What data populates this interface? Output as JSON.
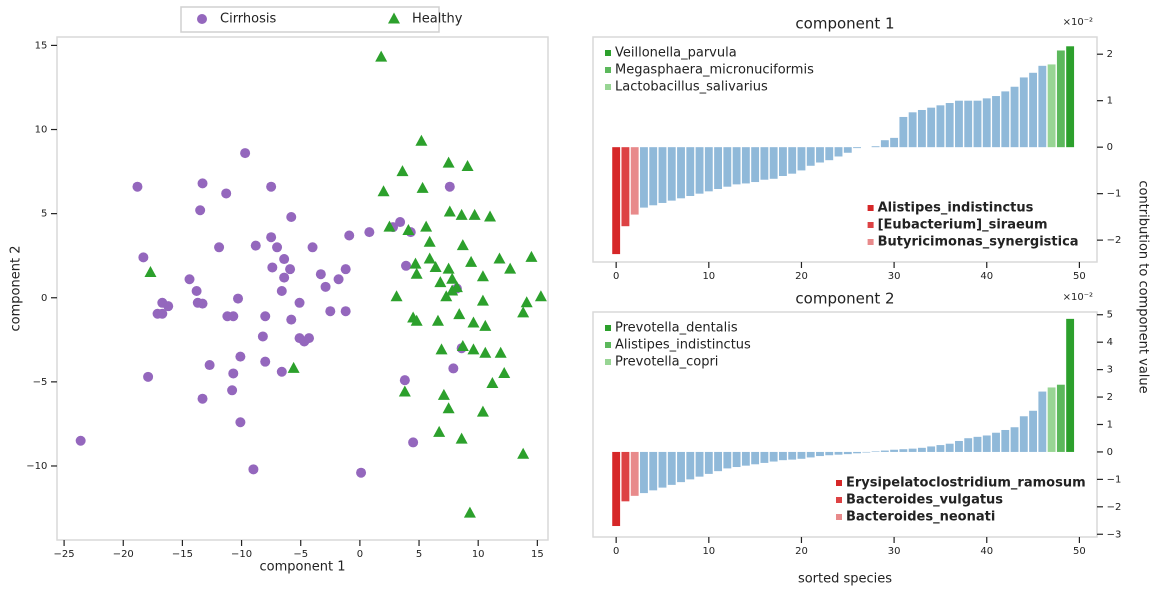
{
  "chart_data": [
    {
      "type": "scatter",
      "xlabel": "component 1",
      "ylabel": "component 2",
      "xlim": [
        -25.6,
        15.9
      ],
      "ylim": [
        -14.4,
        15.5
      ],
      "xticks": [
        {
          "value": -25,
          "label": "−25"
        },
        {
          "value": -20,
          "label": "−20"
        },
        {
          "value": -15,
          "label": "−15"
        },
        {
          "value": -10,
          "label": "−10"
        },
        {
          "value": -5,
          "label": "−5"
        },
        0,
        5,
        10,
        15
      ],
      "yticks": [
        {
          "value": -10,
          "label": "−10"
        },
        {
          "value": -5,
          "label": "−5"
        },
        0,
        5,
        10,
        15
      ],
      "legend": "top",
      "series": [
        {
          "name": "Cirrhosis",
          "color": "#9467bd",
          "marker": "circle",
          "x": [
            -23.6,
            -18.8,
            -18.3,
            -17.9,
            -16.7,
            -16.2,
            -17.1,
            -16.7,
            -14.4,
            -13.8,
            -13.7,
            -13.3,
            -13.5,
            -13.3,
            -13.3,
            -12.7,
            -11.9,
            -11.3,
            -11.2,
            -10.7,
            -10.7,
            -10.8,
            -10.3,
            -10.1,
            -10.1,
            -9.7,
            -9.0,
            -8.8,
            -8.2,
            -8.0,
            -8.0,
            -7.5,
            -7.5,
            -7.4,
            -7.0,
            -6.6,
            -6.4,
            -6.4,
            -6.6,
            -5.9,
            -5.8,
            -5.8,
            -5.1,
            -5.1,
            -4.7,
            -4.3,
            -4.0,
            -3.3,
            -2.9,
            -2.5,
            -1.8,
            -1.2,
            -1.2,
            -0.9,
            0.1,
            0.8,
            2.8,
            3.4,
            3.9,
            4.3,
            3.8,
            4.5,
            7.6,
            8.2,
            8.6,
            7.9
          ],
          "y": [
            -8.5,
            6.6,
            2.4,
            -4.7,
            -0.3,
            -0.5,
            -0.95,
            -0.95,
            1.1,
            0.4,
            -0.3,
            -0.35,
            5.2,
            6.8,
            -6.0,
            -4.0,
            3.0,
            6.2,
            -1.1,
            -1.1,
            -4.5,
            -5.5,
            -0.05,
            -3.5,
            -7.4,
            8.6,
            -10.2,
            3.1,
            -2.3,
            -1.1,
            -3.8,
            6.6,
            3.6,
            1.8,
            3.0,
            0.4,
            2.3,
            1.2,
            -4.4,
            1.7,
            4.8,
            -1.3,
            -0.3,
            -2.4,
            -2.6,
            -2.4,
            3.0,
            1.4,
            0.65,
            -0.8,
            1.1,
            1.7,
            -0.8,
            3.7,
            -10.4,
            3.9,
            4.2,
            4.5,
            1.9,
            3.9,
            -4.9,
            -8.6,
            6.6,
            0.55,
            -3.0,
            -4.2
          ]
        },
        {
          "name": "Healthy",
          "color": "#2ca02c",
          "marker": "triangle",
          "x": [
            1.8,
            -17.7,
            -5.6,
            2.0,
            2.5,
            3.6,
            5.2,
            5.3,
            7.5,
            9.1,
            4.1,
            5.6,
            5.9,
            7.6,
            8.6,
            9.7,
            11.0,
            4.7,
            4.8,
            5.9,
            6.4,
            6.8,
            7.5,
            7.8,
            8.7,
            9.4,
            10.4,
            11.8,
            12.7,
            3.1,
            4.5,
            4.8,
            6.6,
            7.3,
            7.8,
            8.4,
            8.2,
            10.4,
            9.6,
            10.6,
            6.9,
            8.7,
            9.6,
            10.6,
            11.9,
            3.8,
            7.1,
            7.5,
            10.4,
            11.2,
            12.2,
            6.7,
            8.6,
            13.8,
            9.3,
            13.8,
            14.1,
            15.3,
            14.5
          ],
          "y": [
            14.3,
            1.5,
            -4.2,
            6.3,
            4.2,
            7.5,
            9.3,
            6.5,
            8.0,
            7.8,
            4.0,
            4.2,
            3.3,
            5.1,
            4.9,
            4.9,
            4.8,
            2.0,
            1.4,
            2.3,
            1.8,
            0.9,
            1.7,
            1.1,
            3.1,
            2.1,
            1.25,
            2.3,
            1.7,
            0.06,
            -1.2,
            -1.4,
            -1.4,
            0.06,
            0.4,
            -1.0,
            0.6,
            -0.2,
            -1.5,
            -1.7,
            -3.1,
            -2.9,
            -3.1,
            -3.3,
            -3.3,
            -5.6,
            -5.8,
            -6.6,
            -6.8,
            -5.1,
            -4.5,
            -8.0,
            -8.4,
            -9.3,
            -12.8,
            -0.9,
            -0.3,
            0.06,
            2.4
          ]
        }
      ]
    },
    {
      "type": "bar",
      "title": "component 1",
      "offset_label": "×10⁻²",
      "ylabel": "contribution to component value",
      "xlim": [
        -2.5,
        51.9
      ],
      "ylim": [
        -2.47,
        2.37
      ],
      "xticks": [
        0,
        10,
        20,
        30,
        40,
        50
      ],
      "yticks": [
        {
          "value": -2,
          "label": "−2"
        },
        {
          "value": -1,
          "label": "−1"
        },
        0,
        1,
        2
      ],
      "values": [
        -2.3,
        -1.7,
        -1.45,
        -1.3,
        -1.25,
        -1.2,
        -1.15,
        -1.1,
        -1.05,
        -1.0,
        -0.95,
        -0.9,
        -0.85,
        -0.8,
        -0.78,
        -0.75,
        -0.7,
        -0.68,
        -0.62,
        -0.57,
        -0.5,
        -0.4,
        -0.33,
        -0.28,
        -0.2,
        -0.12,
        -0.02,
        0.0,
        0.02,
        0.15,
        0.2,
        0.65,
        0.75,
        0.8,
        0.85,
        0.9,
        0.95,
        1.0,
        1.0,
        1.0,
        1.05,
        1.1,
        1.2,
        1.3,
        1.5,
        1.6,
        1.75,
        1.78,
        2.08,
        2.17
      ],
      "colors": [
        "#d62728",
        "#dd4244",
        "#e88a8b",
        "#90b9d9",
        "#90b9d9",
        "#90b9d9",
        "#90b9d9",
        "#90b9d9",
        "#90b9d9",
        "#90b9d9",
        "#90b9d9",
        "#90b9d9",
        "#90b9d9",
        "#90b9d9",
        "#90b9d9",
        "#90b9d9",
        "#90b9d9",
        "#90b9d9",
        "#90b9d9",
        "#90b9d9",
        "#90b9d9",
        "#90b9d9",
        "#90b9d9",
        "#90b9d9",
        "#90b9d9",
        "#90b9d9",
        "#90b9d9",
        "#90b9d9",
        "#90b9d9",
        "#90b9d9",
        "#90b9d9",
        "#90b9d9",
        "#90b9d9",
        "#90b9d9",
        "#90b9d9",
        "#90b9d9",
        "#90b9d9",
        "#90b9d9",
        "#90b9d9",
        "#90b9d9",
        "#90b9d9",
        "#90b9d9",
        "#90b9d9",
        "#90b9d9",
        "#90b9d9",
        "#90b9d9",
        "#90b9d9",
        "#98d594",
        "#5cb85c",
        "#2ca02c"
      ],
      "legend_top": [
        {
          "name": "Veillonella_parvula",
          "color": "#2ca02c"
        },
        {
          "name": "Megasphaera_micronuciformis",
          "color": "#5cb85c"
        },
        {
          "name": "Lactobacillus_salivarius",
          "color": "#98d594"
        }
      ],
      "legend_bottom": [
        {
          "name": "Alistipes_indistinctus",
          "color": "#d62728"
        },
        {
          "name": "[Eubacterium]_siraeum",
          "color": "#dd4244"
        },
        {
          "name": "Butyricimonas_synergistica",
          "color": "#e88a8b"
        }
      ]
    },
    {
      "type": "bar",
      "title": "component 2",
      "offset_label": "×10⁻²",
      "xlabel": "sorted species",
      "xlim": [
        -2.5,
        51.9
      ],
      "ylim": [
        -3.1,
        5.1
      ],
      "xticks": [
        0,
        10,
        20,
        30,
        40,
        50
      ],
      "yticks": [
        {
          "value": -3,
          "label": "−3"
        },
        {
          "value": -2,
          "label": "−2"
        },
        {
          "value": -1,
          "label": "−1"
        },
        0,
        1,
        2,
        3,
        4,
        5
      ],
      "values": [
        -2.7,
        -1.8,
        -1.6,
        -1.5,
        -1.4,
        -1.3,
        -1.2,
        -1.1,
        -1.0,
        -0.9,
        -0.8,
        -0.7,
        -0.6,
        -0.55,
        -0.5,
        -0.45,
        -0.4,
        -0.35,
        -0.3,
        -0.28,
        -0.25,
        -0.2,
        -0.15,
        -0.12,
        -0.1,
        -0.08,
        -0.05,
        -0.02,
        0.02,
        0.05,
        0.08,
        0.1,
        0.12,
        0.15,
        0.2,
        0.25,
        0.3,
        0.4,
        0.5,
        0.55,
        0.6,
        0.7,
        0.8,
        0.9,
        1.3,
        1.5,
        2.2,
        2.35,
        2.45,
        4.85
      ],
      "colors": [
        "#d62728",
        "#dd4244",
        "#e88a8b",
        "#90b9d9",
        "#90b9d9",
        "#90b9d9",
        "#90b9d9",
        "#90b9d9",
        "#90b9d9",
        "#90b9d9",
        "#90b9d9",
        "#90b9d9",
        "#90b9d9",
        "#90b9d9",
        "#90b9d9",
        "#90b9d9",
        "#90b9d9",
        "#90b9d9",
        "#90b9d9",
        "#90b9d9",
        "#90b9d9",
        "#90b9d9",
        "#90b9d9",
        "#90b9d9",
        "#90b9d9",
        "#90b9d9",
        "#90b9d9",
        "#90b9d9",
        "#90b9d9",
        "#90b9d9",
        "#90b9d9",
        "#90b9d9",
        "#90b9d9",
        "#90b9d9",
        "#90b9d9",
        "#90b9d9",
        "#90b9d9",
        "#90b9d9",
        "#90b9d9",
        "#90b9d9",
        "#90b9d9",
        "#90b9d9",
        "#90b9d9",
        "#90b9d9",
        "#90b9d9",
        "#90b9d9",
        "#90b9d9",
        "#98d594",
        "#5cb85c",
        "#2ca02c"
      ],
      "legend_top": [
        {
          "name": "Prevotella_dentalis",
          "color": "#2ca02c"
        },
        {
          "name": "Alistipes_indistinctus",
          "color": "#5cb85c"
        },
        {
          "name": "Prevotella_copri",
          "color": "#98d594"
        }
      ],
      "legend_bottom": [
        {
          "name": "Erysipelatoclostridium_ramosum",
          "color": "#d62728"
        },
        {
          "name": "Bacteroides_vulgatus",
          "color": "#dd4244"
        },
        {
          "name": "Bacteroides_neonati",
          "color": "#e88a8b"
        }
      ]
    }
  ]
}
